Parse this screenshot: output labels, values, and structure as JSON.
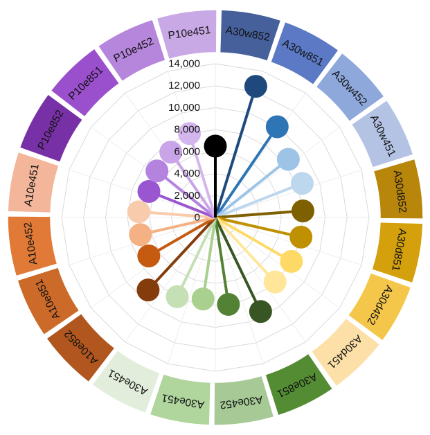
{
  "chart_data": {
    "type": "radial-lollipop",
    "ylim": [
      0,
      14000
    ],
    "tick_labels": [
      "0",
      "2,000",
      "4,000",
      "6,000",
      "8,000",
      "10,000",
      "12,000",
      "14,000"
    ],
    "grid": true,
    "center_value": 6500,
    "center_color": "#000000",
    "categories": [
      {
        "label": "A30w852",
        "value": 12500,
        "color": "#1f497d",
        "ring_color": "#46609c"
      },
      {
        "label": "A30w851",
        "value": 10000,
        "color": "#2e75b6",
        "ring_color": "#5b79c4"
      },
      {
        "label": "A30w452",
        "value": 8500,
        "color": "#9dc3e6",
        "ring_color": "#8ea8dc"
      },
      {
        "label": "A30w451",
        "value": 8500,
        "color": "#bdd7ee",
        "ring_color": "#b4c3e4"
      },
      {
        "label": "A30d852",
        "value": 8000,
        "color": "#7f6000",
        "ring_color": "#b8860b"
      },
      {
        "label": "A30d851",
        "value": 8000,
        "color": "#bf9000",
        "ring_color": "#d4a00c"
      },
      {
        "label": "A30d452",
        "value": 8000,
        "color": "#ffd966",
        "ring_color": "#f4c74a"
      },
      {
        "label": "A30d451",
        "value": 8000,
        "color": "#ffe699",
        "ring_color": "#fde0a8"
      },
      {
        "label": "A30e851",
        "value": 9500,
        "color": "#375623",
        "ring_color": "#548c33"
      },
      {
        "label": "A30e452",
        "value": 8000,
        "color": "#548235",
        "ring_color": "#a6c996"
      },
      {
        "label": "A30e451",
        "value": 7500,
        "color": "#a9d08e",
        "ring_color": "#b0d69e"
      },
      {
        "label": "A30e451",
        "value": 8000,
        "color": "#c5e0b4",
        "ring_color": "#e2eedb"
      },
      {
        "label": "A10e852",
        "value": 9000,
        "color": "#843c0c",
        "ring_color": "#b0561e"
      },
      {
        "label": "A10e851",
        "value": 7000,
        "color": "#c55a11",
        "ring_color": "#cc6a2a"
      },
      {
        "label": "A10e452",
        "value": 7000,
        "color": "#f4b183",
        "ring_color": "#e07a36"
      },
      {
        "label": "A10e451",
        "value": 7000,
        "color": "#f8cbad",
        "ring_color": "#f4b69a"
      },
      {
        "label": "P10e852",
        "value": 6500,
        "color": "#9a55d0",
        "ring_color": "#7730a6"
      },
      {
        "label": "P10e851",
        "value": 6800,
        "color": "#b483de",
        "ring_color": "#9a4fcc"
      },
      {
        "label": "P10e452",
        "value": 7200,
        "color": "#c9a4e8",
        "ring_color": "#b685dc"
      },
      {
        "label": "P10e451",
        "value": 8000,
        "color": "#d4b6ee",
        "ring_color": "#c9a8e6"
      }
    ]
  }
}
